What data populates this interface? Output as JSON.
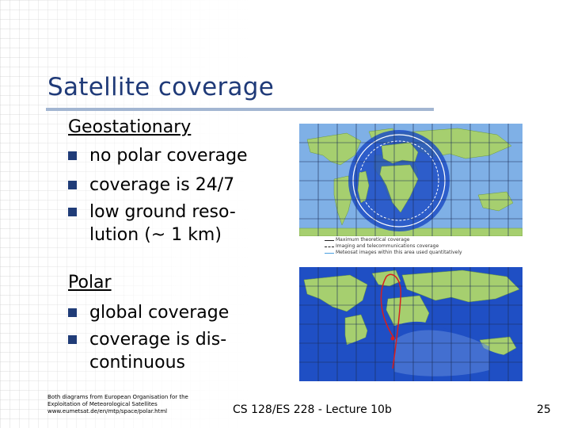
{
  "slide": {
    "title": "Satellite coverage",
    "geostationary": {
      "heading": "Geostationary",
      "bullets": [
        "no polar coverage",
        "coverage is 24/7",
        "low ground reso-",
        "lution (~ 1 km)"
      ]
    },
    "polar": {
      "heading": "Polar",
      "bullets": [
        "global coverage",
        "coverage is dis-",
        "continuous"
      ]
    },
    "map_legend": [
      "Maximum theoretical coverage",
      "Imaging and telecommunications coverage",
      "Meteosat images within this area used quantitatively"
    ],
    "footnote": [
      "Both diagrams from European Organisation for the",
      "Exploitation of Meteorological Satellites",
      "www.eumetsat.de/en/mtp/space/polar.html"
    ],
    "footer": "CS 128/ES 228 - Lecture 10b",
    "page_number": "25"
  },
  "colors": {
    "title": "#1f3a78",
    "bullet": "#203c78",
    "ocean": "#1f4fc4",
    "land": "#a6cf6f",
    "coverage_line": "#ffffff",
    "orbit": "#d81e1e"
  }
}
